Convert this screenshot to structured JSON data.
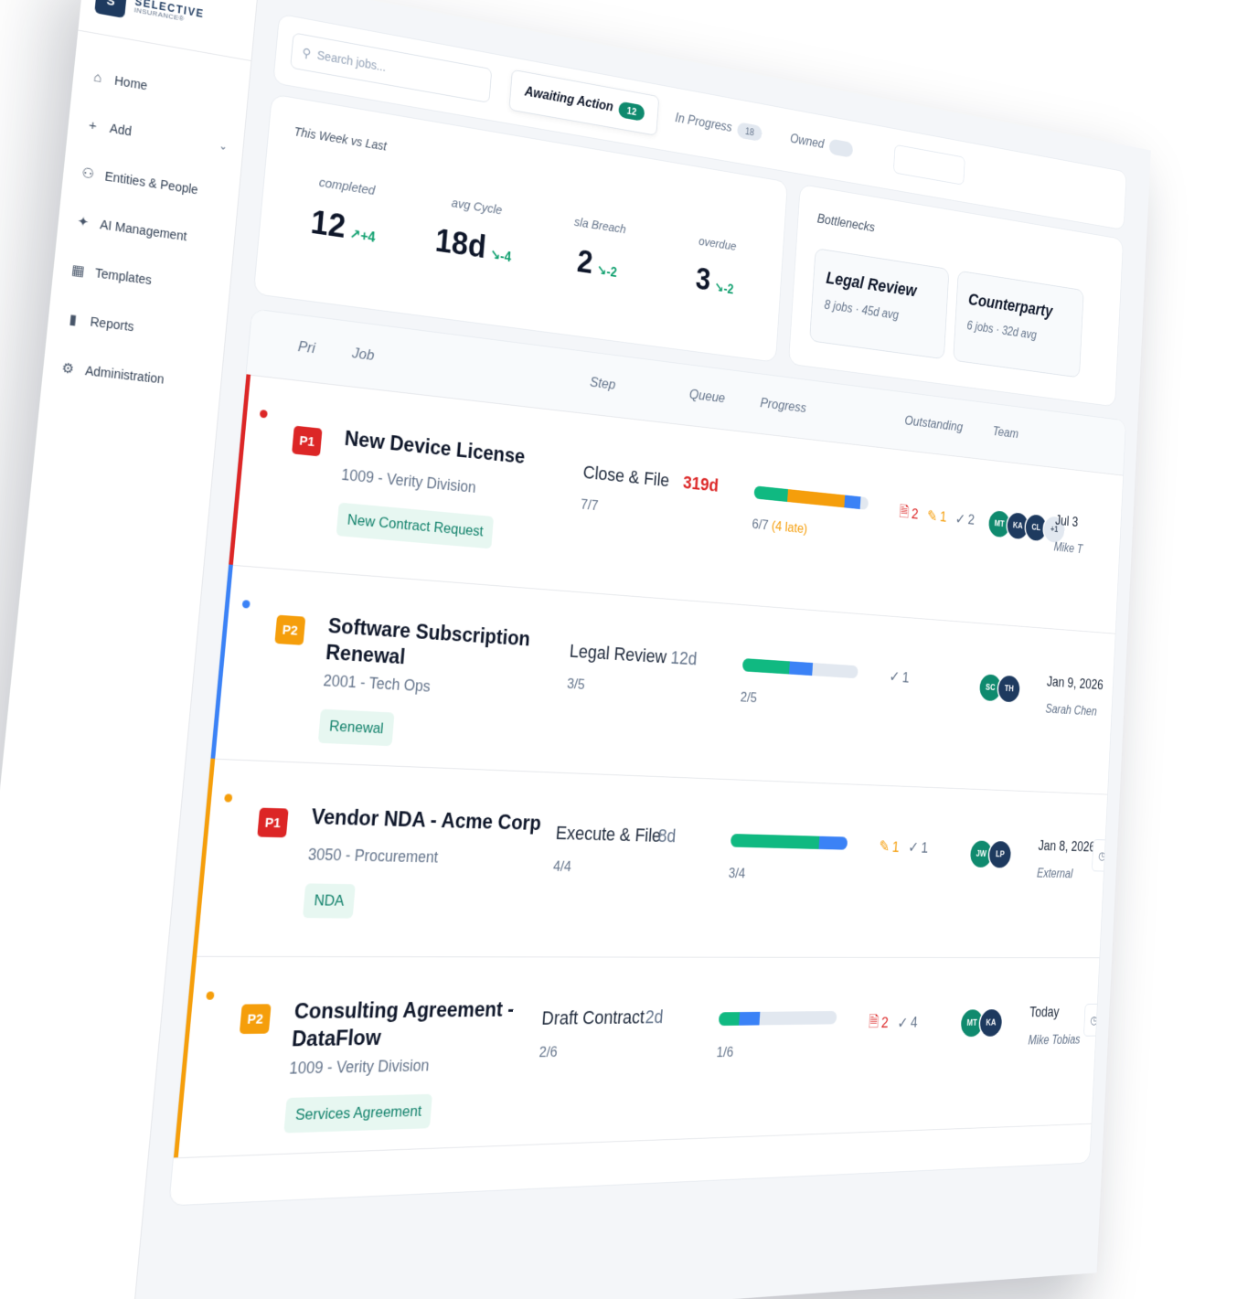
{
  "brand": {
    "mark": "S",
    "name": "SELECTIVE",
    "sub": "INSURANCE®"
  },
  "nav": {
    "items": [
      {
        "label": "Home",
        "icon": "home-icon",
        "glyph": "⌂"
      },
      {
        "label": "Add",
        "icon": "plus-icon",
        "glyph": "+"
      },
      {
        "label": "Entities & People",
        "icon": "people-icon",
        "glyph": "⚇"
      },
      {
        "label": "AI Management",
        "icon": "sparkle-icon",
        "glyph": "✦"
      },
      {
        "label": "Templates",
        "icon": "grid-icon",
        "glyph": "▦"
      },
      {
        "label": "Reports",
        "icon": "bar-chart-icon",
        "glyph": "▮"
      },
      {
        "label": "Administration",
        "icon": "gear-icon",
        "glyph": "⚙"
      }
    ],
    "add_chevron": "⌄"
  },
  "search": {
    "placeholder": "Search jobs..."
  },
  "tabs": [
    {
      "label": "Awaiting Action",
      "count": "12"
    },
    {
      "label": "In Progress",
      "count": "18"
    },
    {
      "label": "Owned",
      "count": ""
    }
  ],
  "stats": {
    "title": "This Week vs Last",
    "items": [
      {
        "label": "completed",
        "value": "12",
        "delta": "↗+4"
      },
      {
        "label": "avg Cycle",
        "value": "18d",
        "delta": "↘-4"
      },
      {
        "label": "sla Breach",
        "value": "2",
        "delta": "↘-2"
      },
      {
        "label": "overdue",
        "value": "3",
        "delta": "↘-2"
      }
    ]
  },
  "bottlenecks": {
    "title": "Bottlenecks",
    "items": [
      {
        "name": "Legal Review",
        "meta": "8 jobs · 45d avg"
      },
      {
        "name": "Counterparty",
        "meta": "6 jobs · 32d avg"
      }
    ]
  },
  "table": {
    "headers": {
      "pri": "Pri",
      "job": "Job",
      "step": "Step",
      "queue": "Queue",
      "progress": "Progress",
      "outstanding": "Outstanding",
      "team": "Team"
    },
    "rows": [
      {
        "pri": "P1",
        "title": "New Device License",
        "sub": "1009 - Verity Division",
        "tag": "New Contract Request",
        "step": "Close & File",
        "step_frac": "7/7",
        "queue": "319d",
        "progress": {
          "done": 2,
          "active": 3.5,
          "blue": 0.8,
          "total": 7
        },
        "progress_text": "6/7",
        "progress_late": "(4 late)",
        "outstanding": {
          "doc": "2",
          "edit": "1",
          "check": "2"
        },
        "team": [
          "MT",
          "KA",
          "CL"
        ],
        "team_more": "+1",
        "due": "Jul 3",
        "owner": "Mike T"
      },
      {
        "pri": "P2",
        "title": "Software Subscription Renewal",
        "sub": "2001 - Tech Ops",
        "tag": "Renewal",
        "step": "Legal Review",
        "step_frac": "3/5",
        "queue": "12d",
        "progress_text": "2/5",
        "progress_late": "",
        "outstanding": {
          "doc": "",
          "edit": "",
          "check": "1"
        },
        "team": [
          "SC",
          "TH"
        ],
        "team_more": "",
        "due": "Jan 9, 2026",
        "owner": "Sarah Chen"
      },
      {
        "pri": "P1",
        "title": "Vendor NDA - Acme Corp",
        "sub": "3050 - Procurement",
        "tag": "NDA",
        "step": "Execute & File",
        "step_frac": "4/4",
        "queue": "8d",
        "progress_text": "3/4",
        "progress_late": "",
        "outstanding": {
          "doc": "",
          "edit": "1",
          "check": "1"
        },
        "team": [
          "JW",
          "LP"
        ],
        "team_more": "",
        "due": "Jan 8, 2026",
        "owner": "External"
      },
      {
        "pri": "P2",
        "title": "Consulting Agreement - DataFlow",
        "sub": "1009 - Verity Division",
        "tag": "Services Agreement",
        "step": "Draft Contract",
        "step_frac": "2/6",
        "queue": "2d",
        "progress_text": "1/6",
        "progress_late": "",
        "outstanding": {
          "doc": "2",
          "edit": "",
          "check": "4"
        },
        "team": [
          "MT",
          "KA"
        ],
        "team_more": "",
        "due": "Today",
        "owner": "Mike Tobias"
      }
    ]
  },
  "colors": {
    "p1": "#dc2626",
    "p2": "#f59e0b",
    "green": "#10b981",
    "blue": "#3b82f6",
    "amber": "#f59e0b",
    "row_bars": [
      "#dc2626",
      "#3b82f6",
      "#f59e0b",
      "#f59e0b"
    ],
    "avatar_teal": "#0f8a6e",
    "avatar_navy": "#1e3a5f"
  },
  "progress_levels": [
    {
      "green": 0.29,
      "amber": 0.5,
      "blue": 0.14
    },
    {
      "green": 0.4,
      "amber": 0,
      "blue": 0.2
    },
    {
      "green": 0.75,
      "amber": 0,
      "blue": 0.25
    },
    {
      "green": 0.17,
      "amber": 0,
      "blue": 0.17
    }
  ],
  "row_actions": {
    "clock": "◷",
    "go": "✓"
  }
}
